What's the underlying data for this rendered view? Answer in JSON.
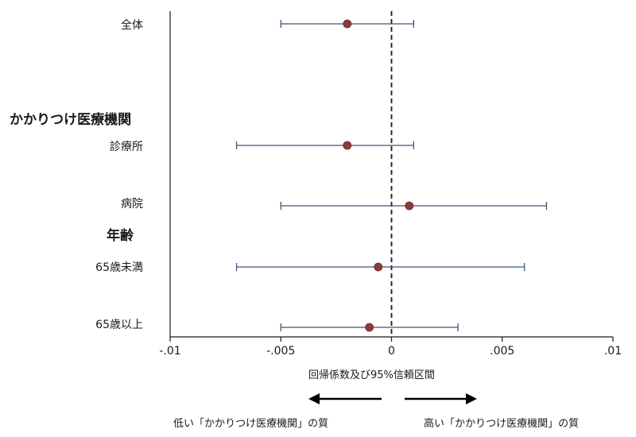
{
  "chart_data": {
    "type": "forest",
    "xlabel": "回帰係数及び95%信頼区間",
    "xlim": [
      -0.01,
      0.01
    ],
    "xticks": [
      -0.01,
      -0.005,
      0,
      0.005,
      0.01
    ],
    "xtick_labels": [
      "-.01",
      "-.005",
      "0",
      ".005",
      ".01"
    ],
    "reference_line": 0,
    "groups": [
      {
        "label": "かかりつけ医療機関",
        "position_after_row": 0
      },
      {
        "label": "年齢",
        "position_after_row": 2
      }
    ],
    "rows": [
      {
        "label": "全体",
        "estimate": -0.002,
        "lower": -0.005,
        "upper": 0.001
      },
      {
        "label": "診療所",
        "estimate": -0.002,
        "lower": -0.007,
        "upper": 0.001
      },
      {
        "label": "病院",
        "estimate": 0.0008,
        "lower": -0.005,
        "upper": 0.007
      },
      {
        "label": "65歳未満",
        "estimate": -0.0006,
        "lower": -0.007,
        "upper": 0.006
      },
      {
        "label": "65歳以上",
        "estimate": -0.001,
        "lower": -0.005,
        "upper": 0.003
      }
    ],
    "colors": {
      "point": "#8b3a3f",
      "ci": "#3b5678",
      "axis": "#1a1a1a"
    },
    "direction_labels": {
      "left": "低い「かかりつけ医療機関」の質",
      "right": "高い「かかりつけ医療機関」の質"
    }
  }
}
